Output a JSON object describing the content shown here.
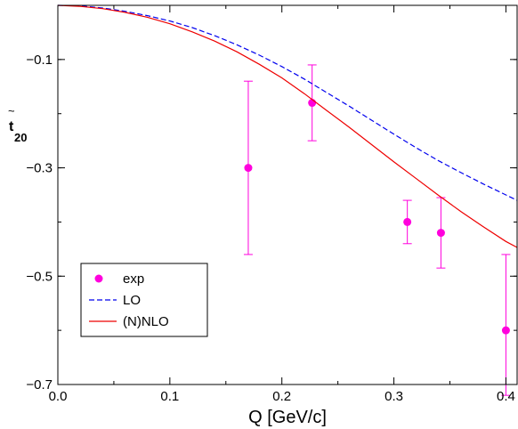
{
  "chart_data": {
    "type": "line",
    "xlabel": "Q [GeV/c]",
    "ylabel": "t~20",
    "ylabel_main": "t",
    "ylabel_accent": "~",
    "ylabel_sub": "20",
    "xlim": [
      0.0,
      0.41
    ],
    "ylim": [
      -0.7,
      0.0
    ],
    "x_ticks": [
      0.0,
      0.1,
      0.2,
      0.3,
      0.4
    ],
    "x_tick_labels": [
      "0.0",
      "0.1",
      "0.2",
      "0.3",
      "0.4"
    ],
    "y_ticks": [
      -0.1,
      -0.3,
      -0.5,
      -0.7
    ],
    "y_tick_labels": [
      "−0.1",
      "−0.3",
      "−0.5",
      "−0.7"
    ],
    "grid": false,
    "legend_position": "lower-left",
    "series": [
      {
        "name": "exp",
        "kind": "points",
        "color": "#ff00dd",
        "x": [
          0.17,
          0.227,
          0.312,
          0.342,
          0.4
        ],
        "y": [
          -0.3,
          -0.18,
          -0.4,
          -0.42,
          -0.6
        ],
        "err_low": [
          0.16,
          0.07,
          0.04,
          0.065,
          0.12
        ],
        "err_high": [
          0.16,
          0.07,
          0.04,
          0.065,
          0.14
        ]
      },
      {
        "name": "LO",
        "kind": "line",
        "style": "dashed",
        "color": "#0000ee",
        "x": [
          0,
          0.02,
          0.04,
          0.06,
          0.08,
          0.1,
          0.12,
          0.14,
          0.16,
          0.18,
          0.2,
          0.22,
          0.24,
          0.26,
          0.28,
          0.3,
          0.32,
          0.34,
          0.36,
          0.38,
          0.4,
          0.41
        ],
        "y": [
          0.0,
          -0.001,
          -0.005,
          -0.011,
          -0.019,
          -0.029,
          -0.041,
          -0.056,
          -0.073,
          -0.092,
          -0.113,
          -0.136,
          -0.161,
          -0.186,
          -0.212,
          -0.238,
          -0.263,
          -0.287,
          -0.309,
          -0.33,
          -0.35,
          -0.36
        ]
      },
      {
        "name": "(N)NLO",
        "kind": "line",
        "style": "solid",
        "color": "#ee0000",
        "x": [
          0,
          0.02,
          0.04,
          0.06,
          0.08,
          0.1,
          0.12,
          0.14,
          0.16,
          0.18,
          0.2,
          0.22,
          0.24,
          0.26,
          0.28,
          0.3,
          0.32,
          0.34,
          0.36,
          0.38,
          0.4,
          0.41
        ],
        "y": [
          0.0,
          -0.002,
          -0.006,
          -0.013,
          -0.022,
          -0.034,
          -0.049,
          -0.066,
          -0.086,
          -0.109,
          -0.134,
          -0.163,
          -0.194,
          -0.225,
          -0.257,
          -0.289,
          -0.32,
          -0.351,
          -0.381,
          -0.409,
          -0.436,
          -0.447
        ]
      }
    ]
  }
}
